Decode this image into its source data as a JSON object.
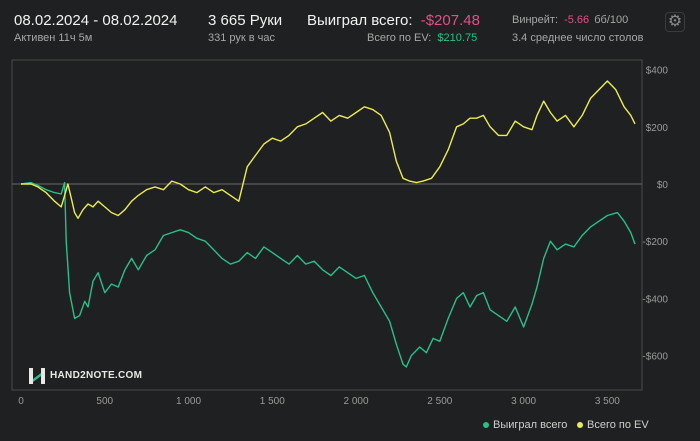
{
  "header": {
    "date_range": "08.02.2024 - 08.02.2024",
    "active_time": "Активен 11ч 5м",
    "hands_count": "3 665 Руки",
    "hands_per_hour": "331 рук в час",
    "won_total_label": "Выиграл всего:",
    "won_total_value": "-$207.48",
    "ev_total_label": "Всего по EV:",
    "ev_total_value": "$210.75",
    "winrate_label": "Винрейт:",
    "winrate_value": "-5.66",
    "winrate_unit": "бб/100",
    "avg_tables": "3.4 среднее число столов"
  },
  "logo": {
    "text": "HAND2NOTE.COM"
  },
  "colors": {
    "background": "#1f2021",
    "plot_border": "#4a4b4c",
    "won_line": "#27c08a",
    "ev_line": "#ecec4f",
    "negative": "#e0508a",
    "positive": "#27c08a"
  },
  "chart_data": {
    "type": "line",
    "x_ticks": [
      0,
      500,
      1000,
      1500,
      2000,
      2500,
      3000,
      3500
    ],
    "x_tick_labels": [
      "0",
      "500",
      "1 000",
      "1 500",
      "2 000",
      "2 500",
      "3 000",
      "3 500"
    ],
    "y_ticks": [
      400,
      200,
      0,
      -200,
      -400,
      -600
    ],
    "y_tick_labels": [
      "$400",
      "$200",
      "$0",
      "-$200",
      "-$400",
      "-$600"
    ],
    "xlim": [
      0,
      3665
    ],
    "ylim": [
      -680,
      420
    ],
    "grid": false,
    "zero_line": true,
    "legend_position": "bottom-right",
    "series": [
      {
        "name": "Выиграл всего",
        "color": "#27c08a",
        "points": [
          [
            0,
            0
          ],
          [
            60,
            5
          ],
          [
            100,
            -5
          ],
          [
            150,
            -20
          ],
          [
            200,
            -30
          ],
          [
            240,
            -35
          ],
          [
            260,
            5
          ],
          [
            270,
            -200
          ],
          [
            290,
            -380
          ],
          [
            320,
            -470
          ],
          [
            350,
            -460
          ],
          [
            380,
            -410
          ],
          [
            400,
            -430
          ],
          [
            430,
            -340
          ],
          [
            460,
            -310
          ],
          [
            500,
            -380
          ],
          [
            540,
            -350
          ],
          [
            580,
            -360
          ],
          [
            620,
            -300
          ],
          [
            660,
            -260
          ],
          [
            700,
            -300
          ],
          [
            750,
            -250
          ],
          [
            800,
            -230
          ],
          [
            850,
            -180
          ],
          [
            900,
            -170
          ],
          [
            950,
            -160
          ],
          [
            1000,
            -170
          ],
          [
            1050,
            -190
          ],
          [
            1100,
            -200
          ],
          [
            1150,
            -230
          ],
          [
            1200,
            -260
          ],
          [
            1250,
            -280
          ],
          [
            1300,
            -270
          ],
          [
            1350,
            -240
          ],
          [
            1400,
            -260
          ],
          [
            1450,
            -220
          ],
          [
            1500,
            -240
          ],
          [
            1550,
            -260
          ],
          [
            1600,
            -280
          ],
          [
            1650,
            -250
          ],
          [
            1700,
            -280
          ],
          [
            1750,
            -270
          ],
          [
            1800,
            -300
          ],
          [
            1850,
            -320
          ],
          [
            1900,
            -290
          ],
          [
            1950,
            -310
          ],
          [
            2000,
            -330
          ],
          [
            2050,
            -320
          ],
          [
            2100,
            -380
          ],
          [
            2150,
            -430
          ],
          [
            2200,
            -480
          ],
          [
            2240,
            -560
          ],
          [
            2280,
            -630
          ],
          [
            2300,
            -640
          ],
          [
            2330,
            -600
          ],
          [
            2380,
            -570
          ],
          [
            2420,
            -590
          ],
          [
            2460,
            -540
          ],
          [
            2500,
            -550
          ],
          [
            2550,
            -470
          ],
          [
            2600,
            -400
          ],
          [
            2640,
            -380
          ],
          [
            2680,
            -430
          ],
          [
            2720,
            -390
          ],
          [
            2760,
            -380
          ],
          [
            2800,
            -440
          ],
          [
            2850,
            -460
          ],
          [
            2900,
            -480
          ],
          [
            2950,
            -430
          ],
          [
            3000,
            -500
          ],
          [
            3050,
            -420
          ],
          [
            3080,
            -360
          ],
          [
            3120,
            -260
          ],
          [
            3160,
            -200
          ],
          [
            3200,
            -230
          ],
          [
            3250,
            -210
          ],
          [
            3300,
            -220
          ],
          [
            3350,
            -180
          ],
          [
            3400,
            -150
          ],
          [
            3450,
            -130
          ],
          [
            3500,
            -110
          ],
          [
            3560,
            -100
          ],
          [
            3600,
            -130
          ],
          [
            3640,
            -170
          ],
          [
            3665,
            -210
          ]
        ]
      },
      {
        "name": "Всего по EV",
        "color": "#ecec4f",
        "points": [
          [
            0,
            0
          ],
          [
            60,
            0
          ],
          [
            100,
            -10
          ],
          [
            150,
            -30
          ],
          [
            200,
            -60
          ],
          [
            240,
            -80
          ],
          [
            260,
            -40
          ],
          [
            280,
            0
          ],
          [
            300,
            -50
          ],
          [
            320,
            -100
          ],
          [
            340,
            -120
          ],
          [
            370,
            -90
          ],
          [
            400,
            -70
          ],
          [
            430,
            -80
          ],
          [
            460,
            -60
          ],
          [
            500,
            -80
          ],
          [
            540,
            -100
          ],
          [
            580,
            -110
          ],
          [
            620,
            -90
          ],
          [
            660,
            -60
          ],
          [
            700,
            -40
          ],
          [
            750,
            -20
          ],
          [
            800,
            -10
          ],
          [
            850,
            -20
          ],
          [
            900,
            10
          ],
          [
            950,
            0
          ],
          [
            1000,
            -20
          ],
          [
            1050,
            -30
          ],
          [
            1100,
            -10
          ],
          [
            1150,
            -30
          ],
          [
            1200,
            -20
          ],
          [
            1250,
            -40
          ],
          [
            1300,
            -60
          ],
          [
            1350,
            60
          ],
          [
            1400,
            100
          ],
          [
            1450,
            140
          ],
          [
            1500,
            160
          ],
          [
            1550,
            150
          ],
          [
            1600,
            170
          ],
          [
            1650,
            200
          ],
          [
            1700,
            210
          ],
          [
            1750,
            230
          ],
          [
            1800,
            250
          ],
          [
            1850,
            220
          ],
          [
            1900,
            240
          ],
          [
            1950,
            230
          ],
          [
            2000,
            250
          ],
          [
            2050,
            270
          ],
          [
            2100,
            260
          ],
          [
            2150,
            240
          ],
          [
            2200,
            180
          ],
          [
            2240,
            80
          ],
          [
            2280,
            20
          ],
          [
            2320,
            10
          ],
          [
            2360,
            5
          ],
          [
            2400,
            10
          ],
          [
            2450,
            20
          ],
          [
            2500,
            60
          ],
          [
            2550,
            120
          ],
          [
            2600,
            200
          ],
          [
            2640,
            210
          ],
          [
            2680,
            230
          ],
          [
            2720,
            230
          ],
          [
            2760,
            240
          ],
          [
            2800,
            200
          ],
          [
            2850,
            170
          ],
          [
            2900,
            170
          ],
          [
            2950,
            220
          ],
          [
            3000,
            200
          ],
          [
            3050,
            190
          ],
          [
            3080,
            240
          ],
          [
            3120,
            290
          ],
          [
            3160,
            250
          ],
          [
            3200,
            220
          ],
          [
            3250,
            240
          ],
          [
            3300,
            200
          ],
          [
            3350,
            240
          ],
          [
            3400,
            300
          ],
          [
            3450,
            330
          ],
          [
            3500,
            360
          ],
          [
            3550,
            330
          ],
          [
            3600,
            270
          ],
          [
            3640,
            240
          ],
          [
            3665,
            210
          ]
        ]
      }
    ]
  }
}
